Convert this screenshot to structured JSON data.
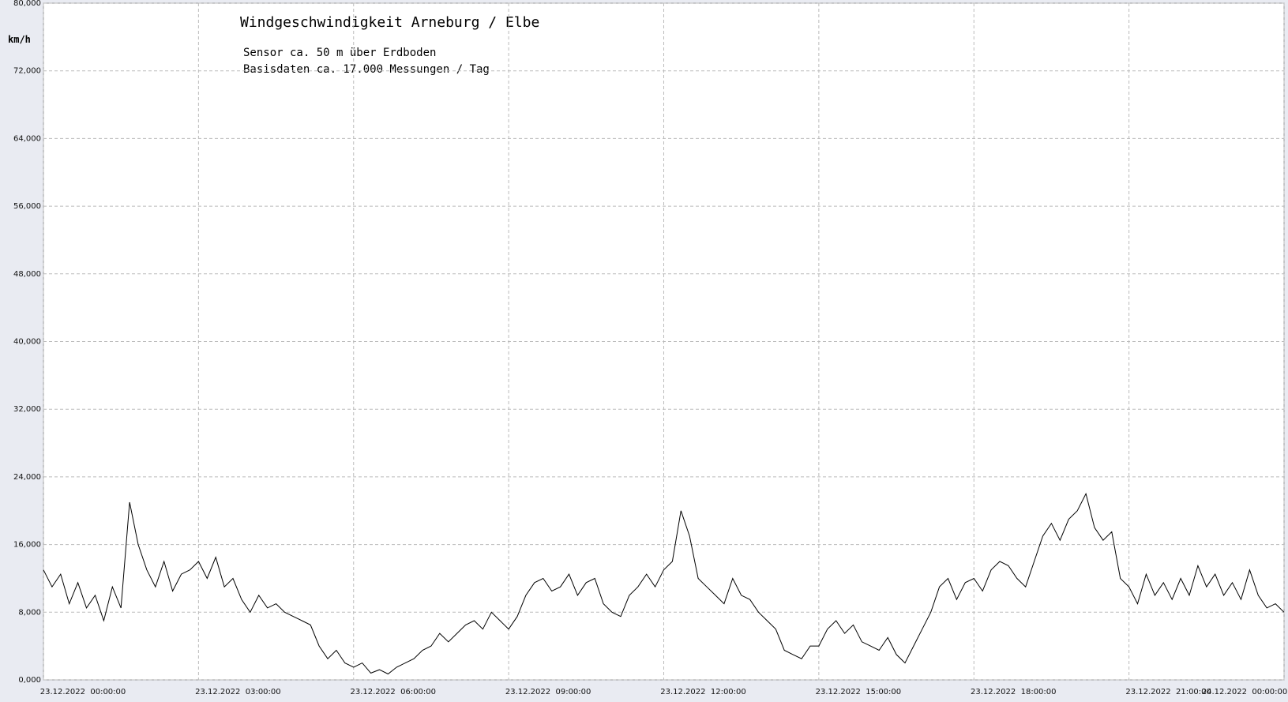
{
  "chart_data": {
    "type": "line",
    "title": "Windgeschwindigkeit  Arneburg / Elbe",
    "subtitle": [
      "Sensor ca. 50 m über Erdboden",
      "Basisdaten ca. 17.000 Messungen / Tag"
    ],
    "ylabel": "km/h",
    "color": "#000000",
    "grid": true,
    "xlim": [
      "2022-12-23T00:00",
      "2022-12-24T00:00"
    ],
    "xticks": [
      {
        "value": "2022-12-23T00:00",
        "label": "23.12.2022  00:00:00"
      },
      {
        "value": "2022-12-23T03:00",
        "label": "23.12.2022  03:00:00"
      },
      {
        "value": "2022-12-23T06:00",
        "label": "23.12.2022  06:00:00"
      },
      {
        "value": "2022-12-23T09:00",
        "label": "23.12.2022  09:00:00"
      },
      {
        "value": "2022-12-23T12:00",
        "label": "23.12.2022  12:00:00"
      },
      {
        "value": "2022-12-23T15:00",
        "label": "23.12.2022  15:00:00"
      },
      {
        "value": "2022-12-23T18:00",
        "label": "23.12.2022  18:00:00"
      },
      {
        "value": "2022-12-23T21:00",
        "label": "23.12.2022  21:00:00"
      },
      {
        "value": "2022-12-24T00:00",
        "label": "24.12.2022  00:00:00"
      }
    ],
    "ylim": [
      0,
      80000
    ],
    "yticks": [
      {
        "value": 0,
        "label": "0,000"
      },
      {
        "value": 8000,
        "label": "8,000"
      },
      {
        "value": 16000,
        "label": "16,000"
      },
      {
        "value": 24000,
        "label": "24,000"
      },
      {
        "value": 32000,
        "label": "32,000"
      },
      {
        "value": 40000,
        "label": "40,000"
      },
      {
        "value": 48000,
        "label": "48,000"
      },
      {
        "value": 56000,
        "label": "56,000"
      },
      {
        "value": 64000,
        "label": "64,000"
      },
      {
        "value": 72000,
        "label": "72,000"
      },
      {
        "value": 80000,
        "label": "80,000"
      }
    ],
    "x": [
      "2022-12-23T00:00",
      "2022-12-23T00:10",
      "2022-12-23T00:20",
      "2022-12-23T00:30",
      "2022-12-23T00:40",
      "2022-12-23T00:50",
      "2022-12-23T01:00",
      "2022-12-23T01:10",
      "2022-12-23T01:20",
      "2022-12-23T01:30",
      "2022-12-23T01:40",
      "2022-12-23T01:50",
      "2022-12-23T02:00",
      "2022-12-23T02:10",
      "2022-12-23T02:20",
      "2022-12-23T02:30",
      "2022-12-23T02:40",
      "2022-12-23T02:50",
      "2022-12-23T03:00",
      "2022-12-23T03:10",
      "2022-12-23T03:20",
      "2022-12-23T03:30",
      "2022-12-23T03:40",
      "2022-12-23T03:50",
      "2022-12-23T04:00",
      "2022-12-23T04:10",
      "2022-12-23T04:20",
      "2022-12-23T04:30",
      "2022-12-23T04:40",
      "2022-12-23T04:50",
      "2022-12-23T05:00",
      "2022-12-23T05:10",
      "2022-12-23T05:20",
      "2022-12-23T05:30",
      "2022-12-23T05:40",
      "2022-12-23T05:50",
      "2022-12-23T06:00",
      "2022-12-23T06:10",
      "2022-12-23T06:20",
      "2022-12-23T06:30",
      "2022-12-23T06:40",
      "2022-12-23T06:50",
      "2022-12-23T07:00",
      "2022-12-23T07:10",
      "2022-12-23T07:20",
      "2022-12-23T07:30",
      "2022-12-23T07:40",
      "2022-12-23T07:50",
      "2022-12-23T08:00",
      "2022-12-23T08:10",
      "2022-12-23T08:20",
      "2022-12-23T08:30",
      "2022-12-23T08:40",
      "2022-12-23T08:50",
      "2022-12-23T09:00",
      "2022-12-23T09:10",
      "2022-12-23T09:20",
      "2022-12-23T09:30",
      "2022-12-23T09:40",
      "2022-12-23T09:50",
      "2022-12-23T10:00",
      "2022-12-23T10:10",
      "2022-12-23T10:20",
      "2022-12-23T10:30",
      "2022-12-23T10:40",
      "2022-12-23T10:50",
      "2022-12-23T11:00",
      "2022-12-23T11:10",
      "2022-12-23T11:20",
      "2022-12-23T11:30",
      "2022-12-23T11:40",
      "2022-12-23T11:50",
      "2022-12-23T12:00",
      "2022-12-23T12:10",
      "2022-12-23T12:20",
      "2022-12-23T12:30",
      "2022-12-23T12:40",
      "2022-12-23T12:50",
      "2022-12-23T13:00",
      "2022-12-23T13:10",
      "2022-12-23T13:20",
      "2022-12-23T13:30",
      "2022-12-23T13:40",
      "2022-12-23T13:50",
      "2022-12-23T14:00",
      "2022-12-23T14:10",
      "2022-12-23T14:20",
      "2022-12-23T14:30",
      "2022-12-23T14:40",
      "2022-12-23T14:50",
      "2022-12-23T15:00",
      "2022-12-23T15:10",
      "2022-12-23T15:20",
      "2022-12-23T15:30",
      "2022-12-23T15:40",
      "2022-12-23T15:50",
      "2022-12-23T16:00",
      "2022-12-23T16:10",
      "2022-12-23T16:20",
      "2022-12-23T16:30",
      "2022-12-23T16:40",
      "2022-12-23T16:50",
      "2022-12-23T17:00",
      "2022-12-23T17:10",
      "2022-12-23T17:20",
      "2022-12-23T17:30",
      "2022-12-23T17:40",
      "2022-12-23T17:50",
      "2022-12-23T18:00",
      "2022-12-23T18:10",
      "2022-12-23T18:20",
      "2022-12-23T18:30",
      "2022-12-23T18:40",
      "2022-12-23T18:50",
      "2022-12-23T19:00",
      "2022-12-23T19:10",
      "2022-12-23T19:20",
      "2022-12-23T19:30",
      "2022-12-23T19:40",
      "2022-12-23T19:50",
      "2022-12-23T20:00",
      "2022-12-23T20:10",
      "2022-12-23T20:20",
      "2022-12-23T20:30",
      "2022-12-23T20:40",
      "2022-12-23T20:50",
      "2022-12-23T21:00",
      "2022-12-23T21:10",
      "2022-12-23T21:20",
      "2022-12-23T21:30",
      "2022-12-23T21:40",
      "2022-12-23T21:50",
      "2022-12-23T22:00",
      "2022-12-23T22:10",
      "2022-12-23T22:20",
      "2022-12-23T22:30",
      "2022-12-23T22:40",
      "2022-12-23T22:50",
      "2022-12-23T23:00",
      "2022-12-23T23:10",
      "2022-12-23T23:20",
      "2022-12-23T23:30",
      "2022-12-23T23:40",
      "2022-12-23T23:50",
      "2022-12-24T00:00"
    ],
    "values": [
      13000,
      11000,
      12500,
      9000,
      11500,
      8500,
      10000,
      7000,
      11000,
      8500,
      21000,
      16000,
      13000,
      11000,
      14000,
      10500,
      12500,
      13000,
      14000,
      12000,
      14500,
      11000,
      12000,
      9500,
      8000,
      10000,
      8500,
      9000,
      8000,
      7500,
      7000,
      6500,
      4000,
      2500,
      3500,
      2000,
      1500,
      2000,
      800,
      1200,
      700,
      1500,
      2000,
      2500,
      3500,
      4000,
      5500,
      4500,
      5500,
      6500,
      7000,
      6000,
      8000,
      7000,
      6000,
      7500,
      10000,
      11500,
      12000,
      10500,
      11000,
      12500,
      10000,
      11500,
      12000,
      9000,
      8000,
      7500,
      10000,
      11000,
      12500,
      11000,
      13000,
      14000,
      20000,
      17000,
      12000,
      11000,
      10000,
      9000,
      12000,
      10000,
      9500,
      8000,
      7000,
      6000,
      3500,
      3000,
      2500,
      4000,
      4000,
      6000,
      7000,
      5500,
      6500,
      4500,
      4000,
      3500,
      5000,
      3000,
      2000,
      4000,
      6000,
      8000,
      11000,
      12000,
      9500,
      11500,
      12000,
      10500,
      13000,
      14000,
      13500,
      12000,
      11000,
      14000,
      17000,
      18500,
      16500,
      19000,
      20000,
      22000,
      18000,
      16500,
      17500,
      12000,
      11000,
      9000,
      12500,
      10000,
      11500,
      9500,
      12000,
      10000,
      13500,
      11000,
      12500,
      10000,
      11500,
      9500,
      13000,
      10000,
      8500,
      9000,
      8000
    ]
  }
}
